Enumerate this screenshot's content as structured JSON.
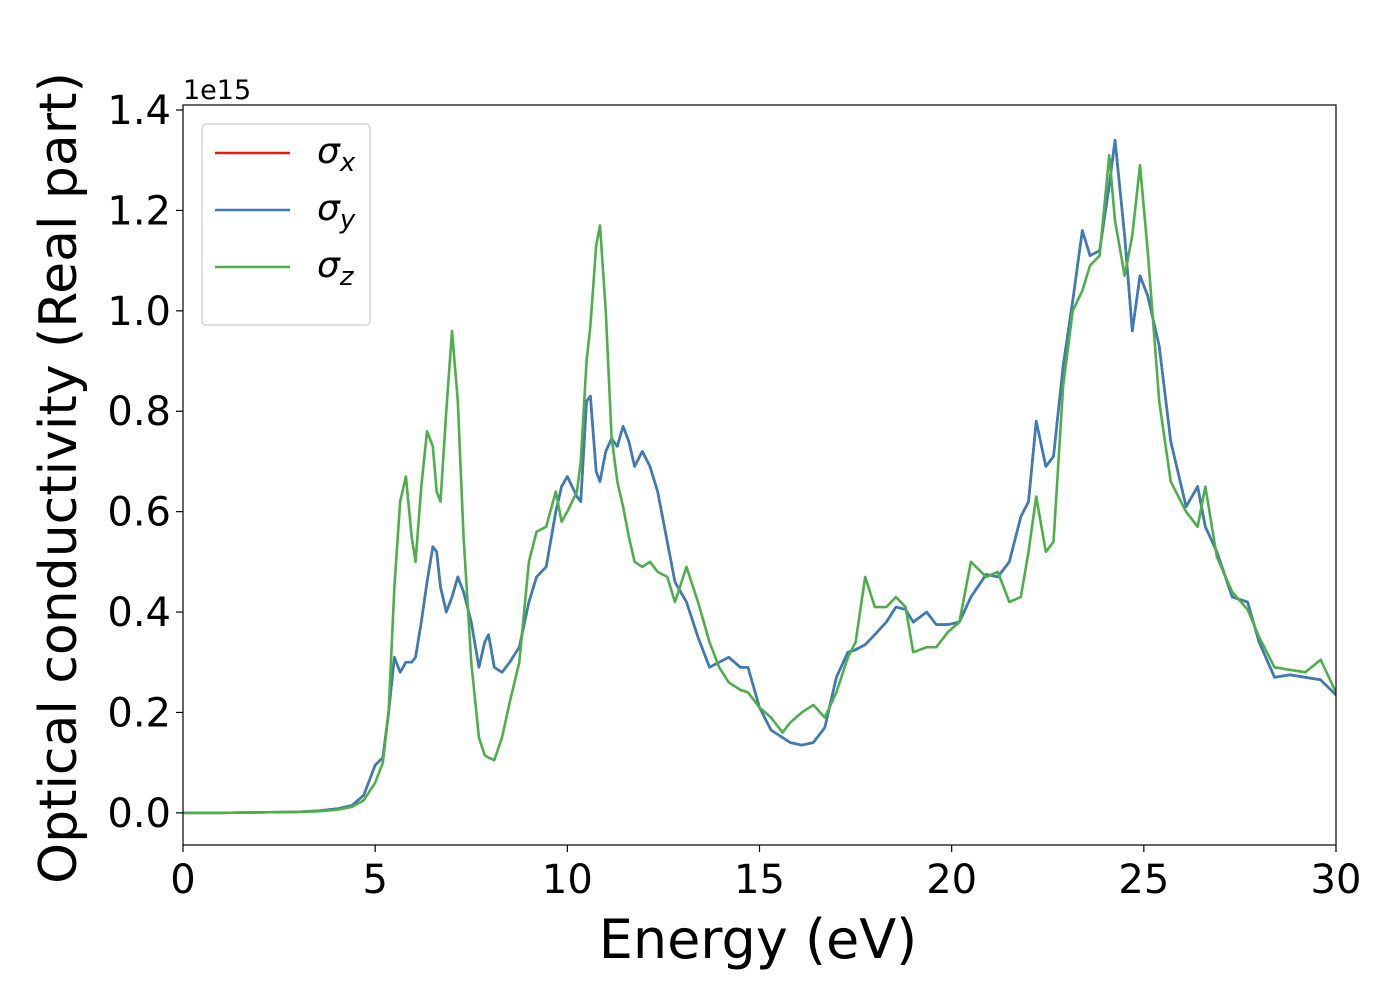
{
  "chart_data": {
    "type": "line",
    "xlabel": "Energy (eV)",
    "ylabel": "Optical conductivity (Real part)",
    "y_offset_label": "1e15",
    "xlim": [
      0,
      30
    ],
    "ylim": [
      -0.064,
      1.41
    ],
    "xticks": [
      0,
      5,
      10,
      15,
      20,
      25,
      30
    ],
    "yticks": [
      {
        "value": 0,
        "label": "0.0"
      },
      0.2,
      0.4,
      0.6,
      0.8,
      {
        "value": 1,
        "label": "1.0"
      },
      1.2,
      1.4
    ],
    "grid": false,
    "legend": "upper left",
    "x": [
      0,
      1,
      2,
      3,
      3.5,
      4,
      4.4,
      4.7,
      5.0,
      5.2,
      5.35,
      5.5,
      5.65,
      5.8,
      5.95,
      6.05,
      6.2,
      6.35,
      6.5,
      6.6,
      6.7,
      6.85,
      7.0,
      7.15,
      7.3,
      7.5,
      7.7,
      7.85,
      7.95,
      8.1,
      8.3,
      8.5,
      8.75,
      9.0,
      9.2,
      9.45,
      9.7,
      9.85,
      10.0,
      10.25,
      10.35,
      10.5,
      10.6,
      10.75,
      10.85,
      11.0,
      11.15,
      11.3,
      11.45,
      11.6,
      11.75,
      11.95,
      12.15,
      12.35,
      12.6,
      12.8,
      13.1,
      13.4,
      13.7,
      13.95,
      14.2,
      14.5,
      14.7,
      15.0,
      15.3,
      15.6,
      15.8,
      16.1,
      16.4,
      16.7,
      17.0,
      17.3,
      17.5,
      17.75,
      18.0,
      18.3,
      18.55,
      18.8,
      19.0,
      19.35,
      19.6,
      19.9,
      20.2,
      20.5,
      20.9,
      21.2,
      21.5,
      21.8,
      22.0,
      22.2,
      22.45,
      22.65,
      22.9,
      23.15,
      23.4,
      23.6,
      23.85,
      24.1,
      24.25,
      24.5,
      24.7,
      24.9,
      25.1,
      25.4,
      25.7,
      26.1,
      26.4,
      26.6,
      26.9,
      27.3,
      27.7,
      28.0,
      28.4,
      28.8,
      29.2,
      29.6,
      30.0
    ],
    "series": [
      {
        "name": "σx",
        "color": "#e41a1c",
        "values": [
          0,
          0,
          0.001,
          0.002,
          0.004,
          0.008,
          0.015,
          0.035,
          0.095,
          0.11,
          0.2,
          0.31,
          0.28,
          0.3,
          0.3,
          0.31,
          0.38,
          0.46,
          0.53,
          0.52,
          0.45,
          0.4,
          0.43,
          0.47,
          0.44,
          0.38,
          0.29,
          0.34,
          0.355,
          0.29,
          0.28,
          0.3,
          0.33,
          0.42,
          0.47,
          0.49,
          0.6,
          0.65,
          0.67,
          0.63,
          0.62,
          0.82,
          0.83,
          0.68,
          0.66,
          0.72,
          0.745,
          0.73,
          0.77,
          0.74,
          0.69,
          0.72,
          0.69,
          0.64,
          0.54,
          0.46,
          0.42,
          0.35,
          0.29,
          0.3,
          0.31,
          0.29,
          0.29,
          0.21,
          0.165,
          0.15,
          0.14,
          0.135,
          0.14,
          0.17,
          0.27,
          0.32,
          0.325,
          0.335,
          0.355,
          0.38,
          0.41,
          0.405,
          0.38,
          0.4,
          0.375,
          0.375,
          0.38,
          0.43,
          0.475,
          0.47,
          0.5,
          0.59,
          0.62,
          0.78,
          0.69,
          0.71,
          0.89,
          1.02,
          1.16,
          1.11,
          1.12,
          1.25,
          1.34,
          1.15,
          0.96,
          1.07,
          1.03,
          0.93,
          0.74,
          0.61,
          0.65,
          0.57,
          0.52,
          0.43,
          0.42,
          0.34,
          0.27,
          0.275,
          0.27,
          0.265,
          0.235
        ]
      },
      {
        "name": "σy",
        "color": "#377eb8",
        "values": [
          0,
          0,
          0.001,
          0.002,
          0.004,
          0.008,
          0.015,
          0.035,
          0.095,
          0.11,
          0.2,
          0.31,
          0.28,
          0.3,
          0.3,
          0.31,
          0.38,
          0.46,
          0.53,
          0.52,
          0.45,
          0.4,
          0.43,
          0.47,
          0.44,
          0.38,
          0.29,
          0.34,
          0.355,
          0.29,
          0.28,
          0.3,
          0.33,
          0.42,
          0.47,
          0.49,
          0.6,
          0.65,
          0.67,
          0.63,
          0.62,
          0.82,
          0.83,
          0.68,
          0.66,
          0.72,
          0.745,
          0.73,
          0.77,
          0.74,
          0.69,
          0.72,
          0.69,
          0.64,
          0.54,
          0.46,
          0.42,
          0.35,
          0.29,
          0.3,
          0.31,
          0.29,
          0.29,
          0.21,
          0.165,
          0.15,
          0.14,
          0.135,
          0.14,
          0.17,
          0.27,
          0.32,
          0.325,
          0.335,
          0.355,
          0.38,
          0.41,
          0.405,
          0.38,
          0.4,
          0.375,
          0.375,
          0.38,
          0.43,
          0.475,
          0.47,
          0.5,
          0.59,
          0.62,
          0.78,
          0.69,
          0.71,
          0.89,
          1.02,
          1.16,
          1.11,
          1.12,
          1.25,
          1.34,
          1.15,
          0.96,
          1.07,
          1.03,
          0.93,
          0.74,
          0.61,
          0.65,
          0.57,
          0.52,
          0.43,
          0.42,
          0.34,
          0.27,
          0.275,
          0.27,
          0.265,
          0.235
        ]
      },
      {
        "name": "σz",
        "color": "#4daf4a",
        "values": [
          0,
          0,
          0.001,
          0.002,
          0.003,
          0.006,
          0.012,
          0.025,
          0.06,
          0.1,
          0.2,
          0.45,
          0.62,
          0.67,
          0.55,
          0.5,
          0.65,
          0.76,
          0.73,
          0.64,
          0.62,
          0.8,
          0.96,
          0.82,
          0.55,
          0.3,
          0.15,
          0.115,
          0.11,
          0.105,
          0.15,
          0.22,
          0.3,
          0.5,
          0.56,
          0.57,
          0.64,
          0.58,
          0.6,
          0.64,
          0.7,
          0.9,
          0.97,
          1.13,
          1.17,
          1.0,
          0.75,
          0.66,
          0.61,
          0.55,
          0.5,
          0.49,
          0.5,
          0.48,
          0.47,
          0.42,
          0.49,
          0.42,
          0.34,
          0.29,
          0.26,
          0.245,
          0.24,
          0.21,
          0.19,
          0.16,
          0.18,
          0.2,
          0.215,
          0.19,
          0.24,
          0.31,
          0.34,
          0.47,
          0.41,
          0.41,
          0.43,
          0.41,
          0.32,
          0.33,
          0.33,
          0.36,
          0.38,
          0.5,
          0.47,
          0.48,
          0.42,
          0.43,
          0.52,
          0.63,
          0.52,
          0.54,
          0.85,
          1.0,
          1.04,
          1.09,
          1.11,
          1.31,
          1.18,
          1.07,
          1.15,
          1.29,
          1.12,
          0.82,
          0.66,
          0.6,
          0.57,
          0.65,
          0.51,
          0.44,
          0.405,
          0.35,
          0.29,
          0.285,
          0.28,
          0.305,
          0.24
        ]
      }
    ]
  }
}
